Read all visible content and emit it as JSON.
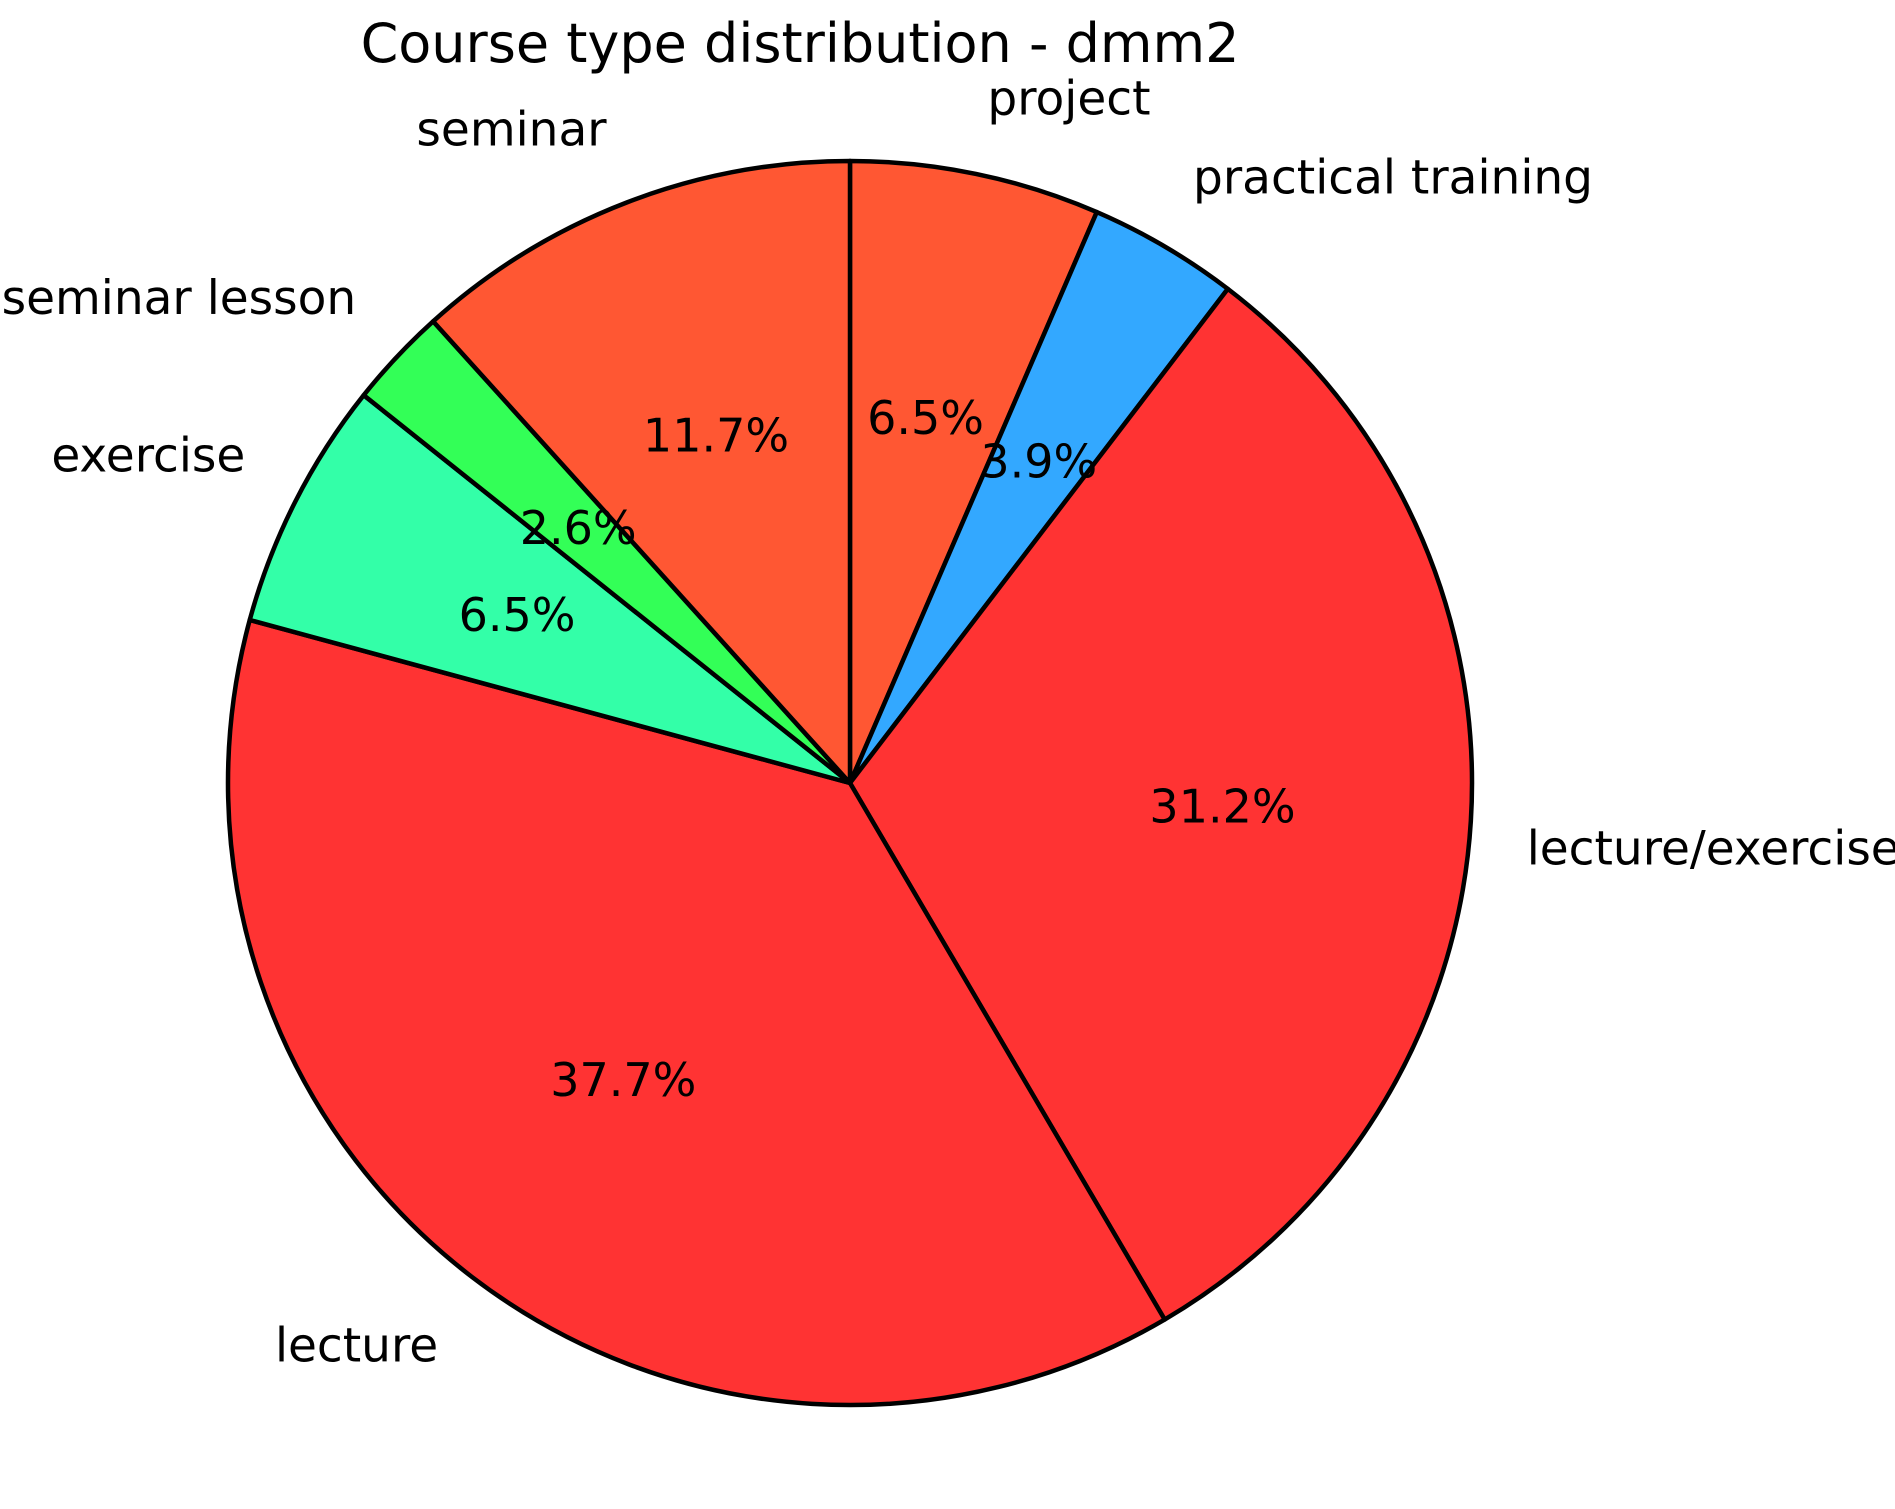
{
  "chart_data": {
    "type": "pie",
    "title": "Course type distribution - dmm2",
    "start_angle_deg": 90,
    "direction": "clockwise",
    "legend": "none",
    "grid": "off",
    "background_color": "#ffffff",
    "edge_color": "#000000",
    "text_color": "#000000",
    "categories": [
      "project",
      "practical training",
      "lecture/exercise",
      "lecture",
      "exercise",
      "seminar lesson",
      "seminar"
    ],
    "values": [
      6.5,
      3.9,
      31.2,
      37.7,
      6.5,
      2.6,
      11.7
    ],
    "slices": [
      {
        "label": "project",
        "value": 6.5,
        "pct_label": "6.5%",
        "color": "#FF5733"
      },
      {
        "label": "practical training",
        "value": 3.9,
        "pct_label": "3.9%",
        "color": "#33A8FF"
      },
      {
        "label": "lecture/exercise",
        "value": 31.2,
        "pct_label": "31.2%",
        "color": "#FF3333"
      },
      {
        "label": "lecture",
        "value": 37.7,
        "pct_label": "37.7%",
        "color": "#FF3333"
      },
      {
        "label": "exercise",
        "value": 6.5,
        "pct_label": "6.5%",
        "color": "#33FFA8"
      },
      {
        "label": "seminar lesson",
        "value": 2.6,
        "pct_label": "2.6%",
        "color": "#33FF57"
      },
      {
        "label": "seminar",
        "value": 11.7,
        "pct_label": "11.7%",
        "color": "#FF5733"
      }
    ]
  }
}
